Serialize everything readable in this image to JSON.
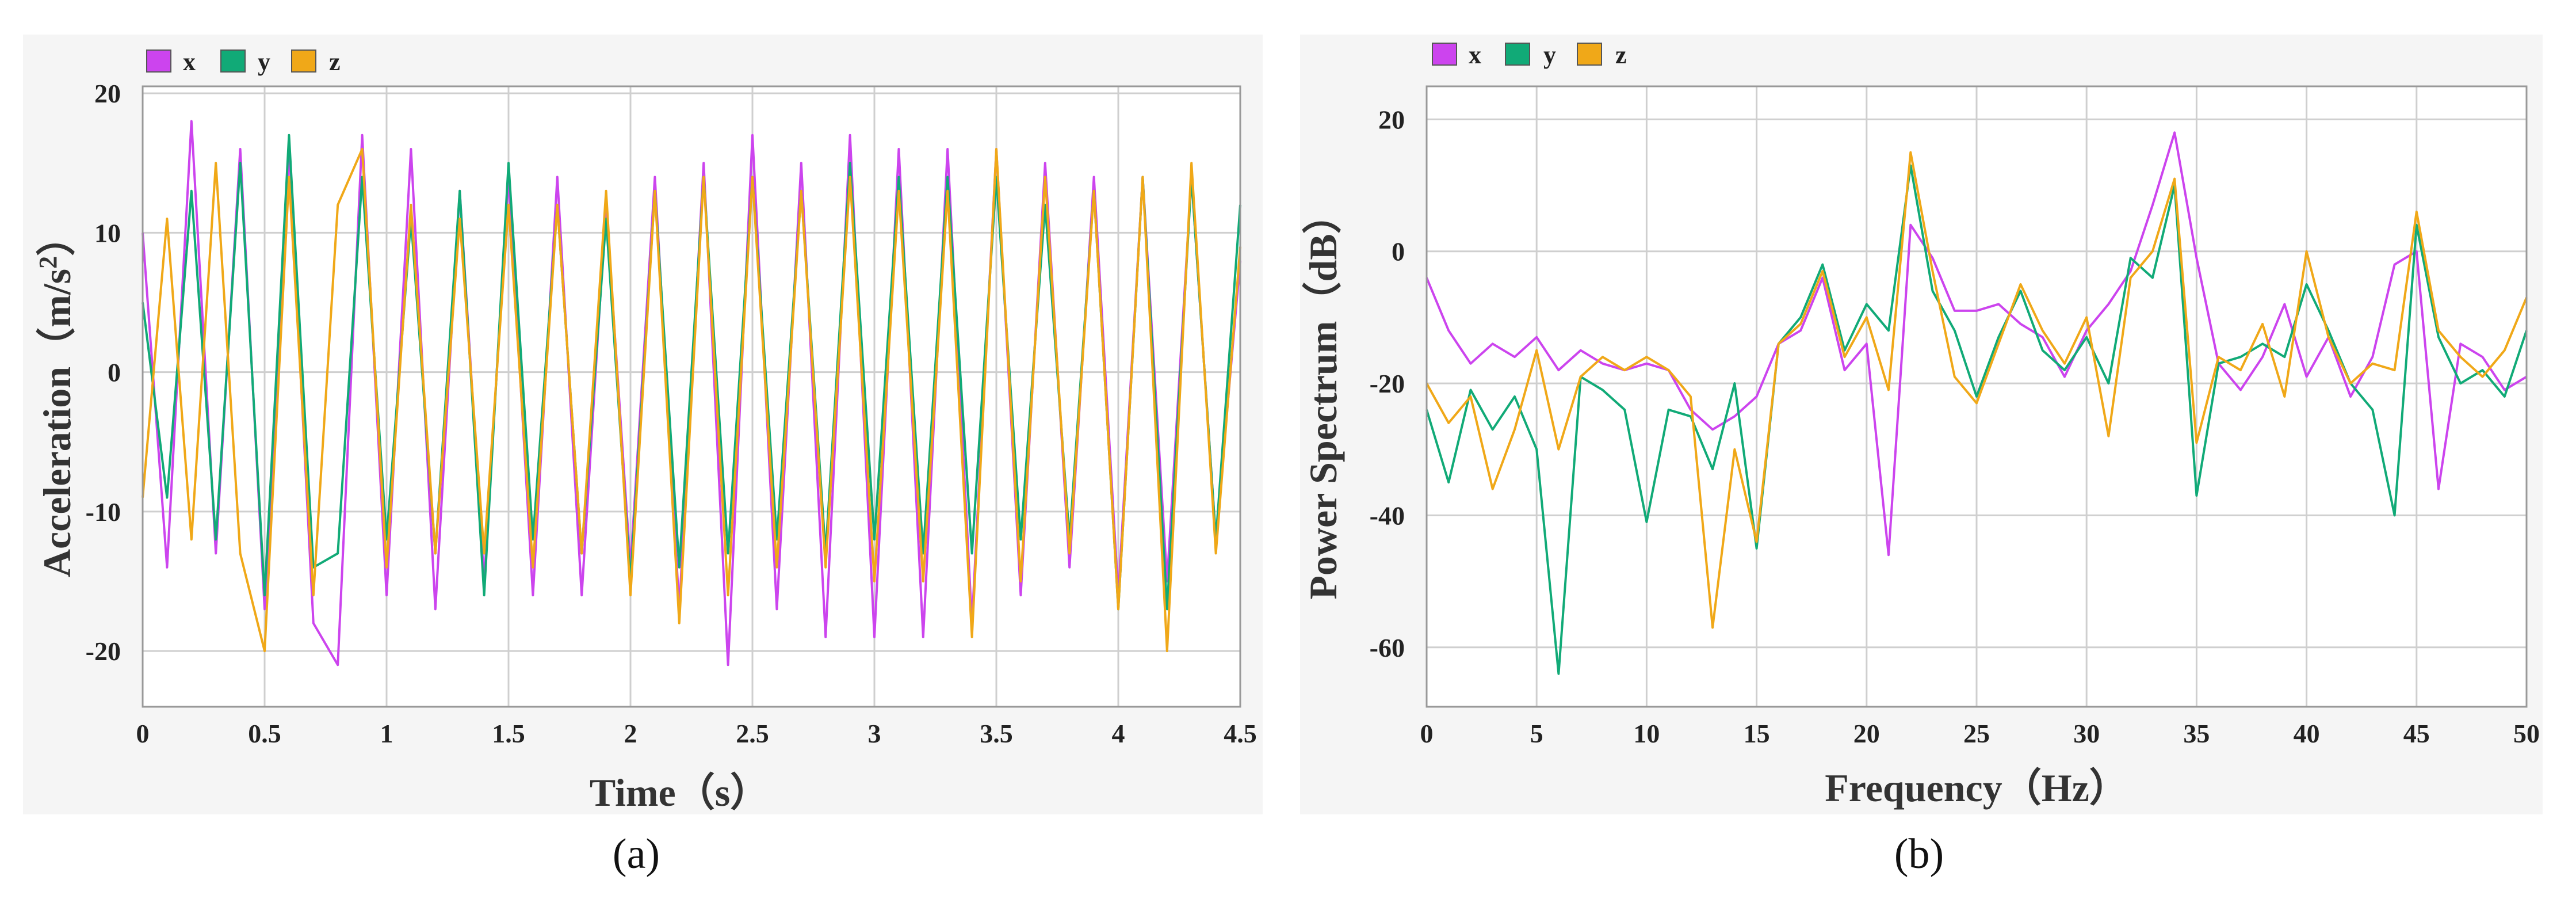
{
  "chart_data": [
    {
      "type": "line",
      "panel": "(a)",
      "title": "",
      "xlabel": "Time（s）",
      "ylabel_prefix": "Acceleration（m/s",
      "ylabel_sup": "2",
      "ylabel_suffix": "）",
      "xlim": [
        0,
        4.5
      ],
      "ylim": [
        -24,
        20.5
      ],
      "xticks": [
        0,
        0.5,
        1,
        1.5,
        2,
        2.5,
        3,
        3.5,
        4,
        4.5
      ],
      "xtick_labels": [
        "0",
        "0.5",
        "1",
        "1.5",
        "2",
        "2.5",
        "3",
        "3.5",
        "4",
        "4.5"
      ],
      "yticks": [
        -20,
        -10,
        0,
        10,
        20
      ],
      "ytick_labels": [
        "-20",
        "-10",
        "0",
        "10",
        "20"
      ],
      "grid": true,
      "legend_position": "top-left",
      "series": [
        {
          "name": "x",
          "color": "#cc44ee",
          "x": [
            0.0,
            0.1,
            0.2,
            0.3,
            0.4,
            0.5,
            0.6,
            0.7,
            0.8,
            0.9,
            1.0,
            1.1,
            1.2,
            1.3,
            1.4,
            1.5,
            1.6,
            1.7,
            1.8,
            1.9,
            2.0,
            2.1,
            2.2,
            2.3,
            2.4,
            2.5,
            2.6,
            2.7,
            2.8,
            2.9,
            3.0,
            3.1,
            3.2,
            3.3,
            3.4,
            3.5,
            3.6,
            3.7,
            3.8,
            3.9,
            4.0,
            4.1,
            4.2,
            4.3,
            4.4,
            4.5
          ],
          "values": [
            10,
            -14,
            18,
            -13,
            16,
            -17,
            16,
            -18,
            -21,
            17,
            -16,
            16,
            -17,
            13,
            -15,
            14,
            -16,
            14,
            -16,
            12,
            -14,
            14,
            -17,
            15,
            -21,
            17,
            -17,
            15,
            -19,
            17,
            -19,
            16,
            -19,
            16,
            -18,
            16,
            -16,
            15,
            -14,
            14,
            -16,
            14,
            -15,
            14,
            -12,
            8
          ]
        },
        {
          "name": "y",
          "color": "#11aa77",
          "x": [
            0.0,
            0.1,
            0.2,
            0.3,
            0.4,
            0.5,
            0.6,
            0.7,
            0.8,
            0.9,
            1.0,
            1.1,
            1.2,
            1.3,
            1.4,
            1.5,
            1.6,
            1.7,
            1.8,
            1.9,
            2.0,
            2.1,
            2.2,
            2.3,
            2.4,
            2.5,
            2.6,
            2.7,
            2.8,
            2.9,
            3.0,
            3.1,
            3.2,
            3.3,
            3.4,
            3.5,
            3.6,
            3.7,
            3.8,
            3.9,
            4.0,
            4.1,
            4.2,
            4.3,
            4.4,
            4.5
          ],
          "values": [
            5,
            -9,
            13,
            -12,
            15,
            -16,
            17,
            -14,
            -13,
            14,
            -12,
            11,
            -13,
            13,
            -16,
            15,
            -12,
            12,
            -13,
            11,
            -15,
            13,
            -14,
            14,
            -13,
            14,
            -12,
            13,
            -13,
            15,
            -12,
            14,
            -13,
            14,
            -13,
            14,
            -12,
            12,
            -12,
            13,
            -17,
            14,
            -17,
            14,
            -12,
            12
          ]
        },
        {
          "name": "z",
          "color": "#f0a818",
          "x": [
            0.0,
            0.1,
            0.2,
            0.3,
            0.4,
            0.5,
            0.6,
            0.7,
            0.8,
            0.9,
            1.0,
            1.1,
            1.2,
            1.3,
            1.4,
            1.5,
            1.6,
            1.7,
            1.8,
            1.9,
            2.0,
            2.1,
            2.2,
            2.3,
            2.4,
            2.5,
            2.6,
            2.7,
            2.8,
            2.9,
            3.0,
            3.1,
            3.2,
            3.3,
            3.4,
            3.5,
            3.6,
            3.7,
            3.8,
            3.9,
            4.0,
            4.1,
            4.2,
            4.3,
            4.4,
            4.5
          ],
          "values": [
            -9,
            11,
            -12,
            15,
            -13,
            -20,
            14,
            -16,
            12,
            16,
            -14,
            12,
            -13,
            11,
            -13,
            12,
            -14,
            12,
            -13,
            13,
            -16,
            13,
            -18,
            14,
            -16,
            14,
            -14,
            13,
            -14,
            14,
            -15,
            13,
            -15,
            13,
            -19,
            16,
            -15,
            14,
            -13,
            13,
            -17,
            14,
            -20,
            15,
            -13,
            9
          ]
        }
      ]
    },
    {
      "type": "line",
      "panel": "(b)",
      "title": "",
      "xlabel": "Frequency（Hz）",
      "ylabel": "Power Spectrum（dB）",
      "xlim": [
        0,
        50
      ],
      "ylim": [
        -69,
        25
      ],
      "xticks": [
        0,
        5,
        10,
        15,
        20,
        25,
        30,
        35,
        40,
        45,
        50
      ],
      "xtick_labels": [
        "0",
        "5",
        "10",
        "15",
        "20",
        "25",
        "30",
        "35",
        "40",
        "45",
        "50"
      ],
      "yticks": [
        -60,
        -40,
        -20,
        0,
        20
      ],
      "ytick_labels": [
        "-60",
        "-40",
        "-20",
        "0",
        "20"
      ],
      "grid": true,
      "legend_position": "top-left",
      "series": [
        {
          "name": "x",
          "color": "#cc44ee",
          "x": [
            0,
            1,
            2,
            3,
            4,
            5,
            6,
            7,
            8,
            9,
            10,
            11,
            12,
            13,
            14,
            15,
            16,
            17,
            18,
            19,
            20,
            21,
            22,
            23,
            24,
            25,
            26,
            27,
            28,
            29,
            30,
            31,
            32,
            33,
            34,
            35,
            36,
            37,
            38,
            39,
            40,
            41,
            42,
            43,
            44,
            45,
            46,
            47,
            48,
            49,
            50
          ],
          "values": [
            -4,
            -12,
            -17,
            -14,
            -16,
            -13,
            -18,
            -15,
            -17,
            -18,
            -17,
            -18,
            -24,
            -27,
            -25,
            -22,
            -14,
            -12,
            -4,
            -18,
            -14,
            -46,
            4,
            -1,
            -9,
            -9,
            -8,
            -11,
            -13,
            -19,
            -12,
            -8,
            -3,
            7,
            18,
            -1,
            -17,
            -21,
            -16,
            -8,
            -19,
            -13,
            -22,
            -16,
            -2,
            0,
            -36,
            -14,
            -16,
            -21,
            -19
          ]
        },
        {
          "name": "y",
          "color": "#11aa77",
          "x": [
            0,
            1,
            2,
            3,
            4,
            5,
            6,
            7,
            8,
            9,
            10,
            11,
            12,
            13,
            14,
            15,
            16,
            17,
            18,
            19,
            20,
            21,
            22,
            23,
            24,
            25,
            26,
            27,
            28,
            29,
            30,
            31,
            32,
            33,
            34,
            35,
            36,
            37,
            38,
            39,
            40,
            41,
            42,
            43,
            44,
            45,
            46,
            47,
            48,
            49,
            50
          ],
          "values": [
            -24,
            -35,
            -21,
            -27,
            -22,
            -30,
            -64,
            -19,
            -21,
            -24,
            -41,
            -24,
            -25,
            -33,
            -20,
            -45,
            -14,
            -10,
            -2,
            -15,
            -8,
            -12,
            13,
            -6,
            -12,
            -22,
            -13,
            -6,
            -15,
            -18,
            -13,
            -20,
            -1,
            -4,
            10,
            -37,
            -17,
            -16,
            -14,
            -16,
            -5,
            -12,
            -20,
            -24,
            -40,
            4,
            -13,
            -20,
            -18,
            -22,
            -12
          ]
        },
        {
          "name": "z",
          "color": "#f0a818",
          "x": [
            0,
            1,
            2,
            3,
            4,
            5,
            6,
            7,
            8,
            9,
            10,
            11,
            12,
            13,
            14,
            15,
            16,
            17,
            18,
            19,
            20,
            21,
            22,
            23,
            24,
            25,
            26,
            27,
            28,
            29,
            30,
            31,
            32,
            33,
            34,
            35,
            36,
            37,
            38,
            39,
            40,
            41,
            42,
            43,
            44,
            45,
            46,
            47,
            48,
            49,
            50
          ],
          "values": [
            -20,
            -26,
            -22,
            -36,
            -27,
            -15,
            -30,
            -19,
            -16,
            -18,
            -16,
            -18,
            -22,
            -57,
            -30,
            -44,
            -14,
            -11,
            -3,
            -16,
            -10,
            -21,
            15,
            -3,
            -19,
            -23,
            -14,
            -5,
            -12,
            -17,
            -10,
            -28,
            -4,
            0,
            11,
            -29,
            -16,
            -18,
            -11,
            -22,
            0,
            -13,
            -20,
            -17,
            -18,
            6,
            -12,
            -16,
            -19,
            -15,
            -7
          ]
        }
      ]
    }
  ]
}
